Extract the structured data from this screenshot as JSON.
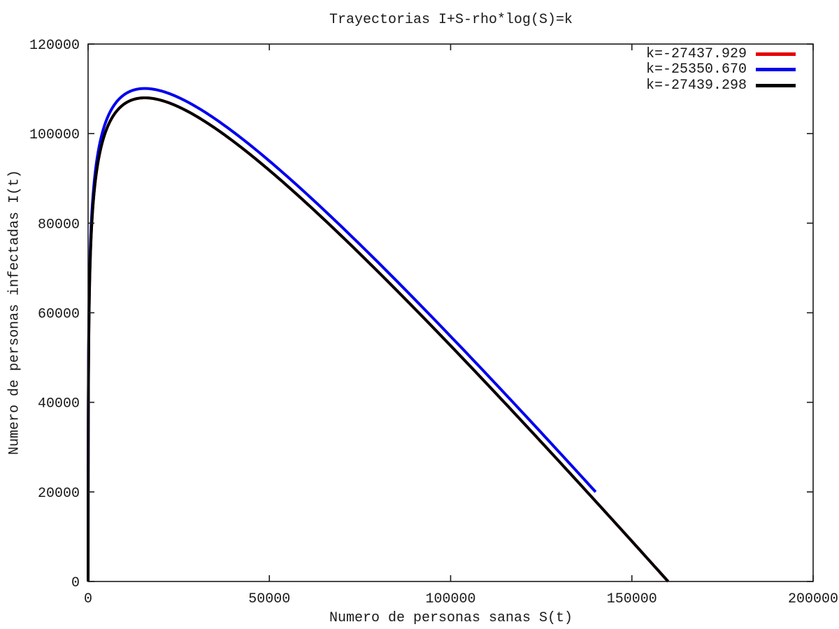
{
  "chart_data": {
    "type": "line",
    "title": "Trayectorias I+S-rho*log(S)=k",
    "xlabel": "Numero de personas sanas S(t)",
    "ylabel": "Numero de personas infectadas I(t)",
    "xlim": [
      0,
      200000
    ],
    "ylim": [
      0,
      120000
    ],
    "xticks": [
      0,
      50000,
      100000,
      150000,
      200000
    ],
    "yticks": [
      0,
      20000,
      40000,
      60000,
      80000,
      100000,
      120000
    ],
    "grid": false,
    "legend_position": "top-right-inside",
    "equation": "I(S) = k - S + rho*log(S)",
    "rho": 15642,
    "series": [
      {
        "name": "k=-27437.929",
        "color": "#e60000",
        "k": -27437.929,
        "s_min": 5.78,
        "s_max": 159998.6,
        "peak": {
          "S": 15642,
          "I": 108000
        },
        "endpoints": [
          {
            "S": 5.78,
            "I": 0
          },
          {
            "S": 159999,
            "I": 0
          }
        ]
      },
      {
        "name": "k=-25350.670",
        "color": "#0000ee",
        "k": -25350.67,
        "s_min": 5.058,
        "s_max": 140000,
        "peak": {
          "S": 15642,
          "I": 110070
        },
        "endpoints": [
          {
            "S": 5.06,
            "I": 0
          },
          {
            "S": 140000,
            "I": 20000
          }
        ]
      },
      {
        "name": "k=-27439.298",
        "color": "#000000",
        "k": -27439.298,
        "s_min": 5.781,
        "s_max": 160000,
        "peak": {
          "S": 15642,
          "I": 107980
        },
        "endpoints": [
          {
            "S": 5.78,
            "I": 0
          },
          {
            "S": 160000,
            "I": 0
          }
        ]
      }
    ]
  }
}
